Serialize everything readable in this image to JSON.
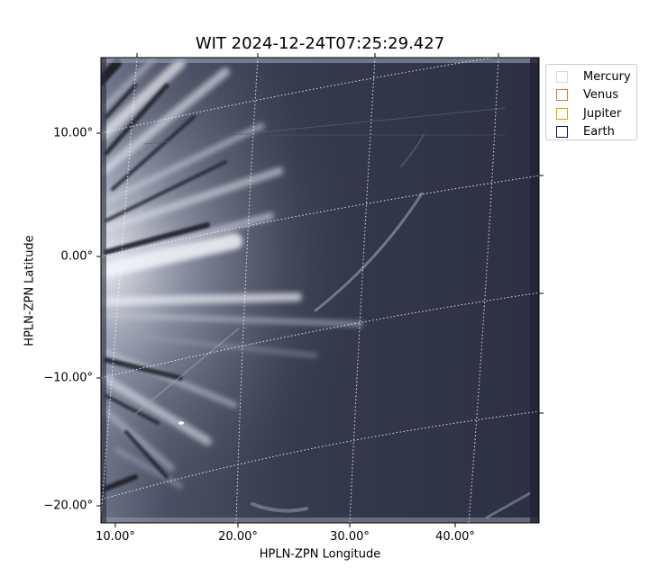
{
  "figure": {
    "title": "WIT 2024-12-24T07:25:29.427",
    "xlabel": "HPLN-ZPN Longitude",
    "ylabel": "HPLN-ZPN Latitude",
    "x_ticks": [
      "10.00°",
      "20.00°",
      "30.00°",
      "40.00°"
    ],
    "y_ticks": [
      "10.00°",
      "0.00°",
      "−10.00°",
      "−20.00°"
    ],
    "colors": {
      "image_dark": "#2a2d3e",
      "image_bright": "#eef1f7",
      "grid": "#ffffff"
    }
  },
  "legend": {
    "items": [
      {
        "label": "Mercury",
        "color": "#d9d9d9"
      },
      {
        "label": "Venus",
        "color": "#d9782e"
      },
      {
        "label": "Jupiter",
        "color": "#e0a000"
      },
      {
        "label": "Earth",
        "color": "#10105a"
      }
    ]
  }
}
